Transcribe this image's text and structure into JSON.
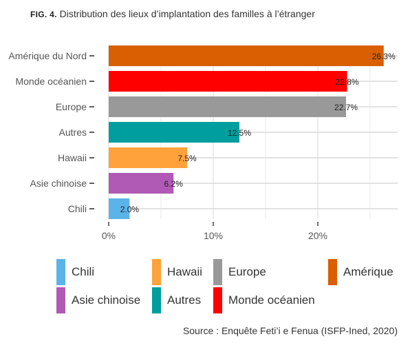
{
  "title": {
    "fig_label": "FIG. 4.",
    "text": "Distribution des lieux d’implantation des familles à l’étranger"
  },
  "colors": {
    "grid": "#d9d9d9",
    "axis_text": "#555555"
  },
  "chart_data": {
    "type": "bar",
    "orientation": "horizontal",
    "title": "Distribution des lieux d’implantation des familles à l’étranger",
    "categories": [
      "Amérique du Nord",
      "Monde océanien",
      "Europe",
      "Autres",
      "Hawaii",
      "Asie chinoise",
      "Chili"
    ],
    "values": [
      26.3,
      22.8,
      22.7,
      12.5,
      7.5,
      6.2,
      2.0
    ],
    "value_labels": [
      "26.3%",
      "22.8%",
      "22.7%",
      "12.5%",
      "7.5%",
      "6.2%",
      "2.0%"
    ],
    "bar_colors": [
      "#d95f02",
      "#ff0000",
      "#999999",
      "#009e9e",
      "#ffa23b",
      "#b05ab5",
      "#5ab4e8"
    ],
    "x_ticks": [
      0,
      10,
      20
    ],
    "x_tick_labels": [
      "0%",
      "10%",
      "20%"
    ],
    "xlim": [
      0,
      27.5
    ],
    "xlabel": "",
    "ylabel": "",
    "grid": true,
    "legend_position": "bottom"
  },
  "legend": {
    "items": [
      {
        "label": "Chili",
        "color": "#5ab4e8"
      },
      {
        "label": "Hawaii",
        "color": "#ffa23b"
      },
      {
        "label": "Europe",
        "color": "#999999"
      },
      {
        "label": "Amérique",
        "color": "#d95f02"
      },
      {
        "label": "Asie chinoise",
        "color": "#b05ab5"
      },
      {
        "label": "Autres",
        "color": "#009e9e"
      },
      {
        "label": "Monde océanien",
        "color": "#ff0000"
      }
    ]
  },
  "source": "Source : Enquête Feti’i e Fenua (ISFP-Ined, 2020)"
}
